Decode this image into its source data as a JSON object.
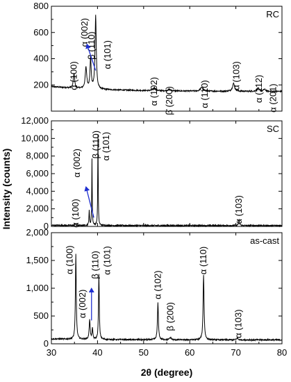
{
  "chart_data": {
    "type": "line",
    "xlabel": "2θ (degree)",
    "ylabel": "Intensity (counts)",
    "xlim": [
      30,
      80
    ],
    "x_ticks": [
      "30",
      "40",
      "50",
      "60",
      "70",
      "80"
    ],
    "line_color": "#000000",
    "arrow_color": "#1f2fd0",
    "panels": [
      {
        "name": "RC",
        "ylim": [
          0,
          800
        ],
        "y_ticks": [
          {
            "value": 200,
            "label": "200"
          },
          {
            "value": 400,
            "label": "400"
          },
          {
            "value": 600,
            "label": "600"
          },
          {
            "value": 800,
            "label": "800"
          }
        ],
        "baseline": 150,
        "peaks": [
          {
            "x": 34.9,
            "height": 110,
            "width": 0.35
          },
          {
            "x": 37.5,
            "height": 160,
            "width": 0.4
          },
          {
            "x": 38.5,
            "height": 230,
            "width": 0.3
          },
          {
            "x": 39.6,
            "height": 560,
            "width": 0.32
          },
          {
            "x": 52.3,
            "height": 22,
            "width": 0.6
          },
          {
            "x": 55.6,
            "height": 10,
            "width": 0.8
          },
          {
            "x": 62.6,
            "height": 28,
            "width": 0.7
          },
          {
            "x": 69.5,
            "height": 60,
            "width": 0.55
          },
          {
            "x": 74.8,
            "height": 25,
            "width": 0.5
          },
          {
            "x": 76.2,
            "height": 15,
            "width": 0.6
          }
        ],
        "labels": [
          {
            "text": "α (100)",
            "x": 34.9,
            "y": 270
          },
          {
            "text": "α (002)",
            "x": 37.2,
            "y": 600
          },
          {
            "text": "β (110)",
            "x": 38.7,
            "y": 500
          },
          {
            "text": "α (101)",
            "x": 42.2,
            "y": 430
          },
          {
            "text": "α (102)",
            "x": 52.3,
            "y": 150
          },
          {
            "text": "β (200)",
            "x": 55.6,
            "y": 80
          },
          {
            "text": "α (110)",
            "x": 63.3,
            "y": 130
          },
          {
            "text": "α (103)",
            "x": 70.1,
            "y": 270
          },
          {
            "text": "α (112)",
            "x": 75.0,
            "y": 170
          },
          {
            "text": "α (201)",
            "x": 78.1,
            "y": 100
          }
        ],
        "arrow": {
          "from": [
            39.6,
            310
          ],
          "to": [
            37.7,
            510
          ]
        }
      },
      {
        "name": "SC",
        "ylim": [
          0,
          12000
        ],
        "y_ticks": [
          {
            "value": 0,
            "label": "0"
          },
          {
            "value": 2000,
            "label": "2,000"
          },
          {
            "value": 4000,
            "label": "4,000"
          },
          {
            "value": 6000,
            "label": "6,000"
          },
          {
            "value": 8000,
            "label": "8,000"
          },
          {
            "value": 10000,
            "label": "10,000"
          },
          {
            "value": 12000,
            "label": "12,000"
          }
        ],
        "baseline": 100,
        "peaks": [
          {
            "x": 35.1,
            "height": 250,
            "width": 0.2
          },
          {
            "x": 38.2,
            "height": 1700,
            "width": 0.15
          },
          {
            "x": 38.8,
            "height": 7600,
            "width": 0.12
          },
          {
            "x": 40.1,
            "height": 10400,
            "width": 0.12
          },
          {
            "x": 70.7,
            "height": 600,
            "width": 0.25
          }
        ],
        "labels": [
          {
            "text": "α (100)",
            "x": 35.3,
            "y": 1500
          },
          {
            "text": "α (002)",
            "x": 35.6,
            "y": 7200
          },
          {
            "text": "β (110)",
            "x": 39.7,
            "y": 9300
          },
          {
            "text": "α (101)",
            "x": 41.9,
            "y": 9100
          },
          {
            "text": "α (103)",
            "x": 70.7,
            "y": 1900
          }
        ],
        "arrow": {
          "from": [
            39.2,
            1000
          ],
          "to": [
            37.5,
            4500
          ]
        }
      },
      {
        "name": "as-cast",
        "ylim": [
          0,
          2000
        ],
        "y_ticks": [
          {
            "value": 0,
            "label": "0"
          },
          {
            "value": 500,
            "label": "500"
          },
          {
            "value": 1000,
            "label": "1,000"
          },
          {
            "value": 1500,
            "label": "1,500"
          },
          {
            "value": 2000,
            "label": "2,000"
          }
        ],
        "baseline": 70,
        "peaks": [
          {
            "x": 35.3,
            "height": 1530,
            "width": 0.22
          },
          {
            "x": 38.3,
            "height": 360,
            "width": 0.25
          },
          {
            "x": 38.9,
            "height": 200,
            "width": 0.2
          },
          {
            "x": 40.3,
            "height": 1170,
            "width": 0.2
          },
          {
            "x": 53.1,
            "height": 660,
            "width": 0.25
          },
          {
            "x": 55.8,
            "height": 40,
            "width": 0.4
          },
          {
            "x": 63.0,
            "height": 1170,
            "width": 0.25
          },
          {
            "x": 70.3,
            "height": 30,
            "width": 0.4
          }
        ],
        "labels": [
          {
            "text": "α (100)",
            "x": 34.0,
            "y": 1510
          },
          {
            "text": "α (002)",
            "x": 36.8,
            "y": 720
          },
          {
            "text": "β (110)",
            "x": 39.6,
            "y": 1420
          },
          {
            "text": "α (101)",
            "x": 42.1,
            "y": 1500
          },
          {
            "text": "α (102)",
            "x": 53.1,
            "y": 1060
          },
          {
            "text": "β (200)",
            "x": 55.8,
            "y": 490
          },
          {
            "text": "α (110)",
            "x": 63.0,
            "y": 1500
          },
          {
            "text": "α (103)",
            "x": 70.6,
            "y": 360
          }
        ],
        "arrow": {
          "from": [
            38.7,
            420
          ],
          "to": [
            38.7,
            1000
          ]
        }
      }
    ]
  }
}
